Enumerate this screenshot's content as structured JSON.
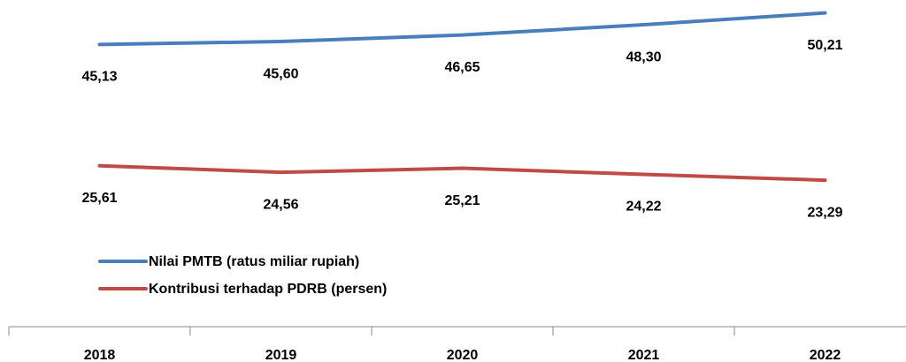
{
  "chart_data": {
    "type": "line",
    "categories": [
      "2018",
      "2019",
      "2020",
      "2021",
      "2022"
    ],
    "series": [
      {
        "name": "Nilai PMTB (ratus miliar rupiah)",
        "color": "#4a7ebb",
        "values": [
          45.13,
          45.6,
          46.65,
          48.3,
          50.21
        ],
        "value_labels": [
          "45,13",
          "45,60",
          "46,65",
          "48,30",
          "50,21"
        ]
      },
      {
        "name": "Kontribusi terhadap PDRB (persen)",
        "color": "#be4b48",
        "values": [
          25.61,
          24.56,
          25.21,
          24.22,
          23.29
        ],
        "value_labels": [
          "25,61",
          "24,56",
          "25,21",
          "24,22",
          "23,29"
        ]
      }
    ],
    "ylim": [
      0,
      52
    ]
  }
}
